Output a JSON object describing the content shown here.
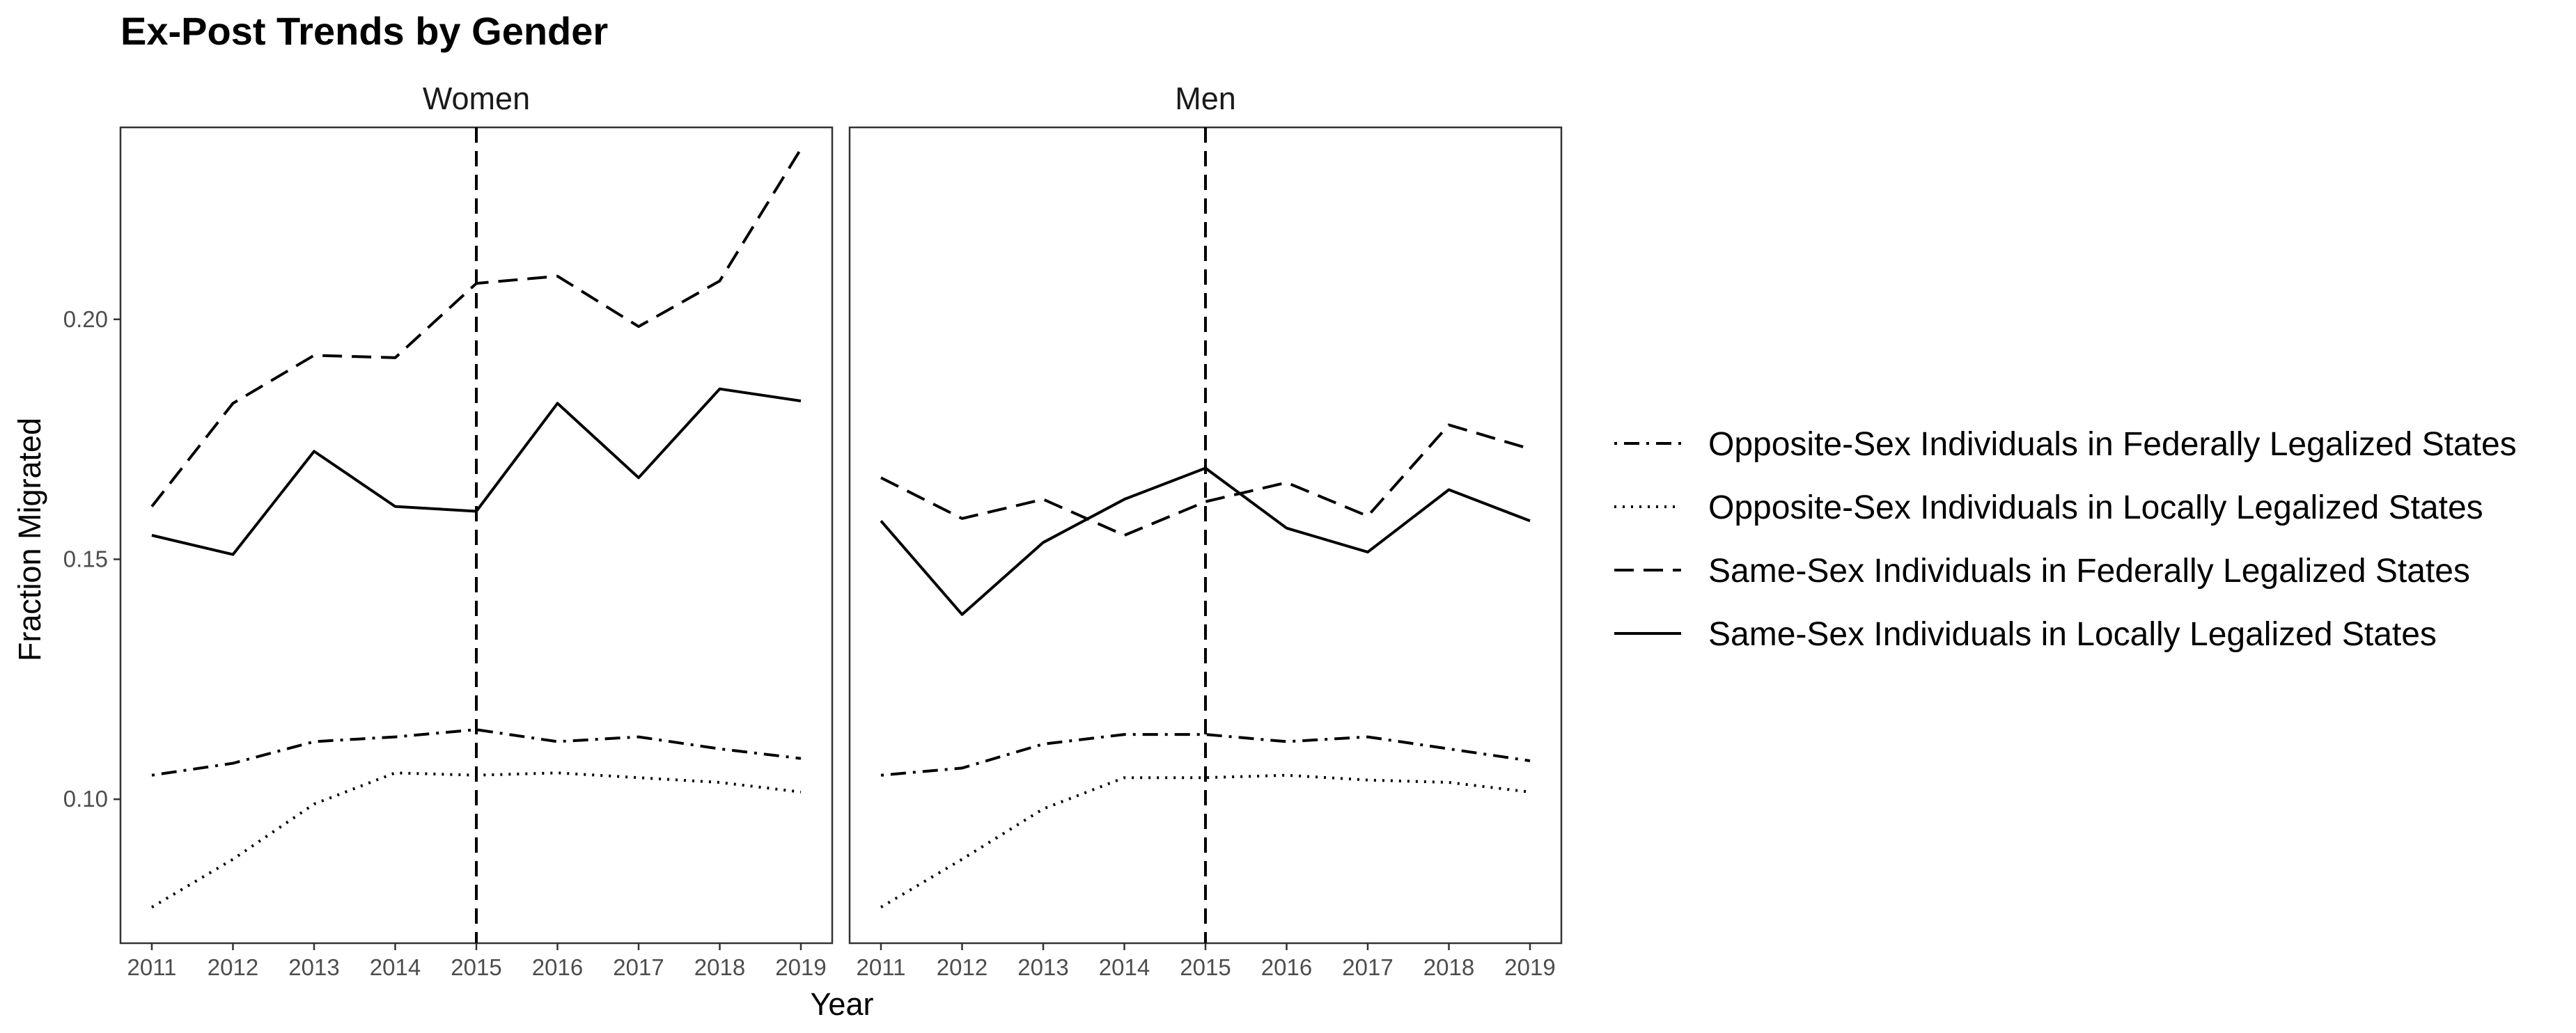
{
  "chart_data": {
    "type": "line",
    "title": "Ex-Post Trends by Gender",
    "xlabel": "Year",
    "ylabel": "Fraction Migrated",
    "x": [
      2011,
      2012,
      2013,
      2014,
      2015,
      2016,
      2017,
      2018,
      2019
    ],
    "xlim": [
      2011,
      2019
    ],
    "ylim": [
      0.07,
      0.24
    ],
    "y_ticks": [
      0.1,
      0.15,
      0.2
    ],
    "y_tick_labels": [
      "0.10",
      "0.15",
      "0.20"
    ],
    "vline_x": 2015,
    "grid": false,
    "legend_position": "right",
    "series_styles": [
      "dotdash",
      "dotted",
      "dashed",
      "solid"
    ],
    "line_color": "#000000",
    "panels": [
      {
        "name": "Women",
        "series": [
          {
            "name": "Opposite-Sex Individuals in Federally Legalized States",
            "values": [
              0.105,
              0.1075,
              0.112,
              0.113,
              0.1145,
              0.112,
              0.113,
              0.1105,
              0.1085
            ]
          },
          {
            "name": "Opposite-Sex Individuals in Locally Legalized States",
            "values": [
              0.0775,
              0.0875,
              0.099,
              0.1055,
              0.105,
              0.1055,
              0.1045,
              0.1035,
              0.1015
            ]
          },
          {
            "name": "Same-Sex Individuals in Federally Legalized States",
            "values": [
              0.161,
              0.1825,
              0.1925,
              0.192,
              0.2075,
              0.209,
              0.1985,
              0.208,
              0.2355
            ]
          },
          {
            "name": "Same-Sex Individuals in Locally Legalized States",
            "values": [
              0.155,
              0.151,
              0.1725,
              0.161,
              0.16,
              0.1825,
              0.167,
              0.1855,
              0.183
            ]
          }
        ]
      },
      {
        "name": "Men",
        "series": [
          {
            "name": "Opposite-Sex Individuals in Federally Legalized States",
            "values": [
              0.105,
              0.1065,
              0.1115,
              0.1135,
              0.1135,
              0.112,
              0.113,
              0.1105,
              0.108
            ]
          },
          {
            "name": "Opposite-Sex Individuals in Locally Legalized States",
            "values": [
              0.0775,
              0.0875,
              0.098,
              0.1045,
              0.1045,
              0.105,
              0.104,
              0.1035,
              0.1015
            ]
          },
          {
            "name": "Same-Sex Individuals in Federally Legalized States",
            "values": [
              0.167,
              0.1585,
              0.1625,
              0.155,
              0.162,
              0.166,
              0.159,
              0.178,
              0.173
            ]
          },
          {
            "name": "Same-Sex Individuals in Locally Legalized States",
            "values": [
              0.158,
              0.1385,
              0.1535,
              0.1625,
              0.169,
              0.1565,
              0.1515,
              0.1645,
              0.158
            ]
          }
        ]
      }
    ]
  }
}
